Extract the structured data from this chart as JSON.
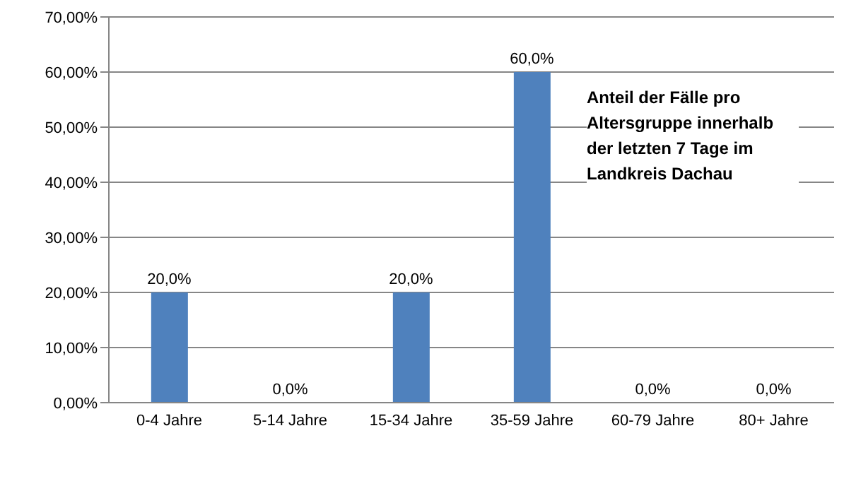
{
  "chart_data": {
    "type": "bar",
    "title": "Anteil der Fälle pro Altersgruppe innerhalb der letzten 7 Tage im Landkreis Dachau",
    "categories": [
      "0-4 Jahre",
      "5-14 Jahre",
      "15-34 Jahre",
      "35-59 Jahre",
      "60-79 Jahre",
      "80+ Jahre"
    ],
    "values": [
      20,
      0,
      20,
      60,
      0,
      0
    ],
    "value_labels": [
      "20,0%",
      "0,0%",
      "20,0%",
      "60,0%",
      "0,0%",
      "0,0%"
    ],
    "color": "#4f81bd",
    "ylim": [
      0,
      70
    ],
    "yticks": [
      {
        "value": 0,
        "label": "0,00%"
      },
      {
        "value": 10,
        "label": "10,00%"
      },
      {
        "value": 20,
        "label": "20,00%"
      },
      {
        "value": 30,
        "label": "30,00%"
      },
      {
        "value": 40,
        "label": "40,00%"
      },
      {
        "value": 50,
        "label": "50,00%"
      },
      {
        "value": 60,
        "label": "60,00%"
      },
      {
        "value": 70,
        "label": "70,00%"
      }
    ],
    "grid": "y"
  }
}
